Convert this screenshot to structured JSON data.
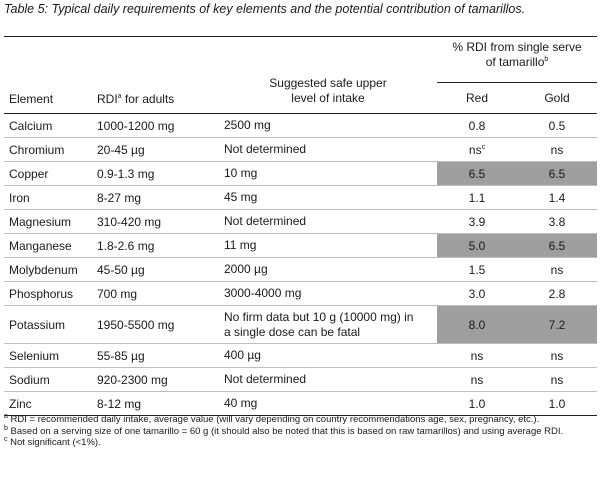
{
  "caption": "Table 5: Typical daily requirements of key elements and the potential contribution of tamarillos.",
  "headers": {
    "element": "Element",
    "rdi_text": "RDI",
    "rdi_sup": "a",
    "rdi_suffix": " for adults",
    "upper_line1": "Suggested safe upper",
    "upper_line2": "level of intake",
    "group_line1": "% RDI from single serve",
    "group_line2": "of tamarillo",
    "group_sup": "b",
    "red": "Red",
    "gold": "Gold"
  },
  "rows": [
    {
      "element": "Calcium",
      "rdi": "1000-1200 mg",
      "upper": "2500 mg",
      "upper2": "",
      "red": "0.8",
      "red_sup": "",
      "gold": "0.5",
      "shaded": false
    },
    {
      "element": "Chromium",
      "rdi": "20-45 µg",
      "upper": "Not determined",
      "upper2": "",
      "red": "ns",
      "red_sup": "c",
      "gold": "ns",
      "shaded": false
    },
    {
      "element": "Copper",
      "rdi": "0.9-1.3 mg",
      "upper": "10 mg",
      "upper2": "",
      "red": "6.5",
      "red_sup": "",
      "gold": "6.5",
      "shaded": true
    },
    {
      "element": "Iron",
      "rdi": "8-27 mg",
      "upper": "45 mg",
      "upper2": "",
      "red": "1.1",
      "red_sup": "",
      "gold": "1.4",
      "shaded": false
    },
    {
      "element": "Magnesium",
      "rdi": "310-420 mg",
      "upper": "Not determined",
      "upper2": "",
      "red": "3.9",
      "red_sup": "",
      "gold": "3.8",
      "shaded": false
    },
    {
      "element": "Manganese",
      "rdi": "1.8-2.6 mg",
      "upper": "11 mg",
      "upper2": "",
      "red": "5.0",
      "red_sup": "",
      "gold": "6.5",
      "shaded": true
    },
    {
      "element": "Molybdenum",
      "rdi": "45-50 µg",
      "upper": "2000 µg",
      "upper2": "",
      "red": "1.5",
      "red_sup": "",
      "gold": "ns",
      "shaded": false
    },
    {
      "element": "Phosphorus",
      "rdi": "700 mg",
      "upper": "3000-4000 mg",
      "upper2": "",
      "red": "3.0",
      "red_sup": "",
      "gold": "2.8",
      "shaded": false
    },
    {
      "element": "Potassium",
      "rdi": "1950-5500 mg",
      "upper": "No firm data but 10 g (10000 mg) in",
      "upper2": "a single dose can be fatal",
      "red": "8.0",
      "red_sup": "",
      "gold": "7.2",
      "shaded": true
    },
    {
      "element": "Selenium",
      "rdi": "55-85 µg",
      "upper": "400 µg",
      "upper2": "",
      "red": "ns",
      "red_sup": "",
      "gold": "ns",
      "shaded": false
    },
    {
      "element": "Sodium",
      "rdi": "920-2300 mg",
      "upper": "Not determined",
      "upper2": "",
      "red": "ns",
      "red_sup": "",
      "gold": "ns",
      "shaded": false
    },
    {
      "element": "Zinc",
      "rdi": "8-12 mg",
      "upper": "40 mg",
      "upper2": "",
      "red": "1.0",
      "red_sup": "",
      "gold": "1.0",
      "shaded": false
    }
  ],
  "footnotes": [
    {
      "mark": "a",
      "text": " RDI = recommended daily intake, average value (will vary depending on country recommendations age, sex, pregnancy, etc.)."
    },
    {
      "mark": "b",
      "text": " Based on a serving size of one tamarillo = 60 g (it should also be noted that this is based on raw tamarillos) and using average RDI."
    },
    {
      "mark": "c",
      "text": " Not significant (<1%)."
    }
  ],
  "colors": {
    "shade": "#9e9e9e",
    "rule": "#222222",
    "row_rule": "#bdbdbd"
  }
}
